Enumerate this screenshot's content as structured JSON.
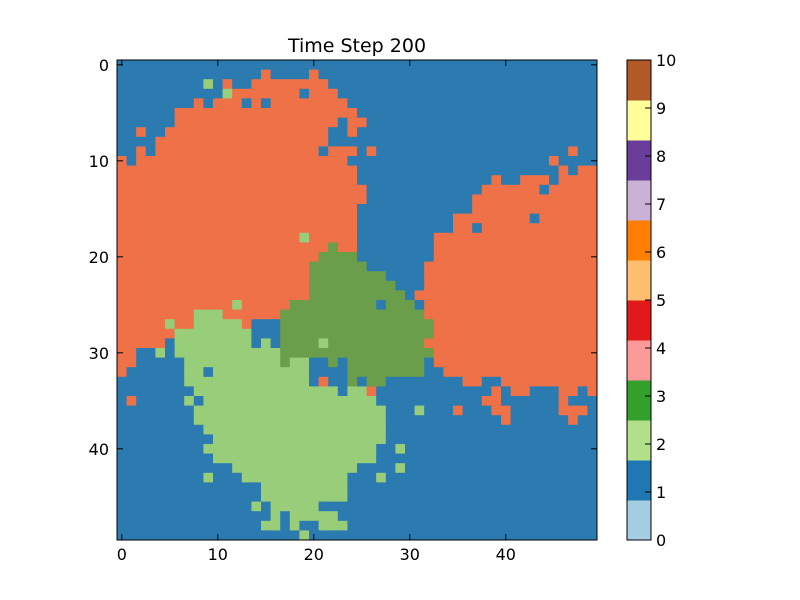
{
  "chart_data": {
    "type": "heatmap",
    "title": "Time Step 200",
    "xlabel": "",
    "ylabel": "",
    "grid": false,
    "grid_size": [
      50,
      50
    ],
    "x_ticks": [
      0,
      10,
      20,
      30,
      40
    ],
    "y_ticks": [
      0,
      10,
      20,
      30,
      40
    ],
    "x_range": [
      -0.5,
      49.5
    ],
    "y_range": [
      -0.5,
      49.5
    ],
    "y_axis_inverted": true,
    "colorbar": {
      "range": [
        0,
        10
      ],
      "ticks": [
        0,
        1,
        2,
        3,
        4,
        5,
        6,
        7,
        8,
        9,
        10
      ],
      "colormap": "Paired",
      "placement": "right"
    },
    "palette": [
      "#a6cee3",
      "#1f78b4",
      "#b2df8a",
      "#33a02c",
      "#fb9a99",
      "#e31a1c",
      "#fdbf6f",
      "#ff7f00",
      "#cab2d6",
      "#6a3d9a",
      "#ffff99",
      "#b15928"
    ],
    "state_colors": {
      "1": "#2b7bb0",
      "2": "#98cd79",
      "3": "#6b9e4a",
      "5": "#ef7148"
    },
    "regions": [
      {
        "value": 5,
        "label": "orange territory (left)",
        "center": [
          11,
          20
        ]
      },
      {
        "value": 5,
        "label": "orange territory (right)",
        "center": [
          41,
          25
        ]
      },
      {
        "value": 3,
        "label": "dark green territory",
        "center": [
          27,
          27
        ]
      },
      {
        "value": 2,
        "label": "light green territory",
        "center": [
          18,
          38
        ]
      },
      {
        "value": 1,
        "label": "blue background",
        "center": [
          0,
          0
        ]
      }
    ]
  }
}
